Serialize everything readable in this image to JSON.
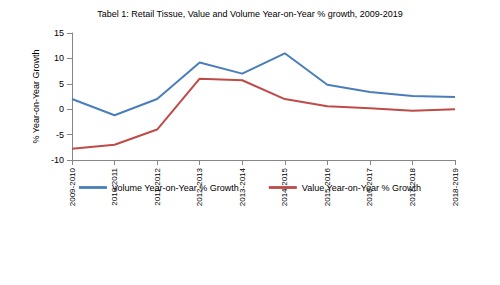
{
  "chart_data": {
    "type": "line",
    "title": "Tabel 1: Retail Tissue, Value and Volume Year-on-Year % growth, 2009-2019",
    "y_label": "% Year-on-Year Growth",
    "categories": [
      "2009-2010",
      "2010-2011",
      "2011-2012",
      "2012-2013",
      "2013-2014",
      "2014-2015",
      "2015-2016",
      "2016-2017",
      "2017-2018",
      "2018-2019"
    ],
    "series": [
      {
        "name": "Volume Year-on-Year % Growth",
        "color": "#4a7ebb",
        "values": [
          2,
          -1.2,
          2,
          9.2,
          7,
          11,
          4.8,
          3.4,
          2.6,
          2.4
        ]
      },
      {
        "name": "Value Year-on-Year % Growth",
        "color": "#be4b48",
        "values": [
          -7.8,
          -7,
          -4,
          6,
          5.7,
          2,
          0.6,
          0.2,
          -0.3,
          0
        ]
      }
    ],
    "ylim": [
      -10,
      15
    ],
    "yticks": [
      -10,
      -5,
      0,
      5,
      10,
      15
    ],
    "grid": false,
    "legend": "bottom",
    "marker": "none",
    "line_style": "solid"
  }
}
